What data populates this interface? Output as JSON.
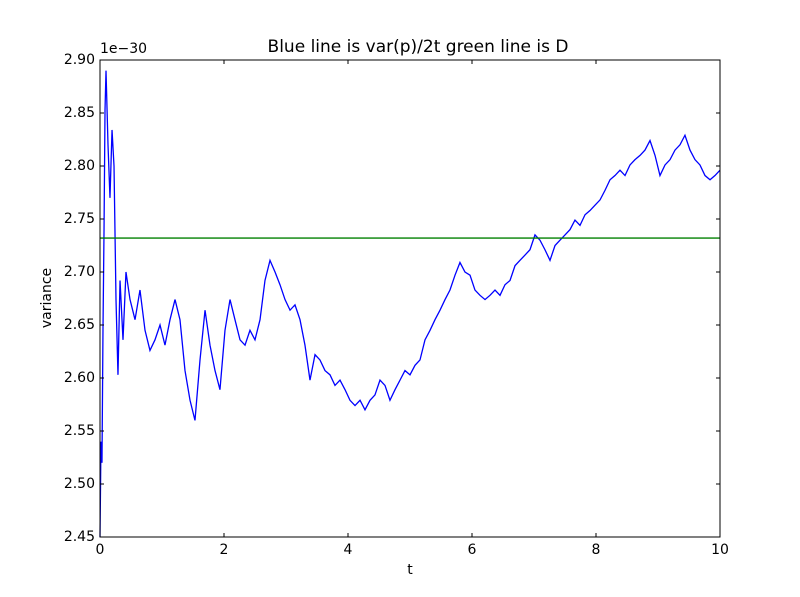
{
  "chart_data": {
    "type": "line",
    "title": "Blue line is var(p)/2t green line is D",
    "xlabel": "t",
    "ylabel": "variance",
    "y_offset_label": "1e−30",
    "xlim": [
      0,
      10
    ],
    "ylim": [
      2.45,
      2.9
    ],
    "xticks": [
      0,
      2,
      4,
      6,
      8,
      10
    ],
    "yticks": [
      2.45,
      {
        "value": 2.5,
        "label": "2.50"
      },
      2.55,
      {
        "value": 2.6,
        "label": "2.60"
      },
      2.65,
      {
        "value": 2.7,
        "label": "2.70"
      },
      2.75,
      {
        "value": 2.8,
        "label": "2.80"
      },
      2.85,
      {
        "value": 2.9,
        "label": "2.90"
      }
    ],
    "series": [
      {
        "color": "#0000ff",
        "x": [
          0,
          0.016,
          0.032,
          0.048,
          0.065,
          0.081,
          0.097,
          0.129,
          0.161,
          0.194,
          0.226,
          0.258,
          0.29,
          0.323,
          0.371,
          0.419,
          0.484,
          0.565,
          0.645,
          0.726,
          0.806,
          0.887,
          0.968,
          1.048,
          1.129,
          1.21,
          1.29,
          1.371,
          1.452,
          1.532,
          1.613,
          1.694,
          1.774,
          1.855,
          1.935,
          2.016,
          2.097,
          2.177,
          2.258,
          2.339,
          2.419,
          2.5,
          2.581,
          2.661,
          2.742,
          2.823,
          2.903,
          2.984,
          3.065,
          3.145,
          3.226,
          3.306,
          3.387,
          3.468,
          3.548,
          3.629,
          3.71,
          3.79,
          3.871,
          3.952,
          4.032,
          4.113,
          4.194,
          4.274,
          4.355,
          4.435,
          4.516,
          4.597,
          4.677,
          4.758,
          4.839,
          4.919,
          5,
          5.081,
          5.161,
          5.242,
          5.323,
          5.403,
          5.484,
          5.565,
          5.645,
          5.726,
          5.806,
          5.887,
          5.968,
          6.048,
          6.129,
          6.21,
          6.29,
          6.371,
          6.452,
          6.532,
          6.613,
          6.694,
          6.774,
          6.855,
          6.935,
          7.016,
          7.097,
          7.177,
          7.258,
          7.339,
          7.419,
          7.5,
          7.581,
          7.661,
          7.742,
          7.823,
          7.903,
          7.984,
          8.065,
          8.145,
          8.226,
          8.306,
          8.387,
          8.468,
          8.548,
          8.629,
          8.71,
          8.79,
          8.871,
          8.952,
          9.032,
          9.113,
          9.194,
          9.274,
          9.355,
          9.435,
          9.516,
          9.597,
          9.677,
          9.758,
          9.839,
          9.919,
          10
        ],
        "values": [
          2.45,
          2.54,
          2.52,
          2.645,
          2.74,
          2.853,
          2.89,
          2.82,
          2.77,
          2.834,
          2.8,
          2.674,
          2.603,
          2.692,
          2.636,
          2.7,
          2.674,
          2.655,
          2.683,
          2.645,
          2.626,
          2.636,
          2.65,
          2.631,
          2.655,
          2.674,
          2.655,
          2.607,
          2.579,
          2.56,
          2.617,
          2.664,
          2.631,
          2.607,
          2.589,
          2.645,
          2.674,
          2.655,
          2.636,
          2.631,
          2.645,
          2.636,
          2.655,
          2.692,
          2.711,
          2.7,
          2.688,
          2.674,
          2.664,
          2.669,
          2.655,
          2.631,
          2.598,
          2.622,
          2.617,
          2.607,
          2.603,
          2.593,
          2.598,
          2.589,
          2.579,
          2.574,
          2.579,
          2.57,
          2.579,
          2.584,
          2.598,
          2.593,
          2.579,
          2.589,
          2.598,
          2.607,
          2.603,
          2.612,
          2.617,
          2.636,
          2.645,
          2.655,
          2.664,
          2.674,
          2.683,
          2.697,
          2.709,
          2.7,
          2.697,
          2.683,
          2.678,
          2.674,
          2.678,
          2.683,
          2.678,
          2.688,
          2.692,
          2.706,
          2.711,
          2.716,
          2.721,
          2.735,
          2.73,
          2.721,
          2.711,
          2.725,
          2.73,
          2.735,
          2.74,
          2.749,
          2.744,
          2.754,
          2.758,
          2.763,
          2.768,
          2.777,
          2.787,
          2.791,
          2.796,
          2.791,
          2.801,
          2.806,
          2.81,
          2.815,
          2.824,
          2.81,
          2.791,
          2.801,
          2.806,
          2.815,
          2.82,
          2.829,
          2.815,
          2.806,
          2.801,
          2.791,
          2.787,
          2.791,
          2.796
        ]
      },
      {
        "color": "#008000",
        "x": [
          0,
          10
        ],
        "values": [
          2.732,
          2.732
        ]
      }
    ]
  }
}
